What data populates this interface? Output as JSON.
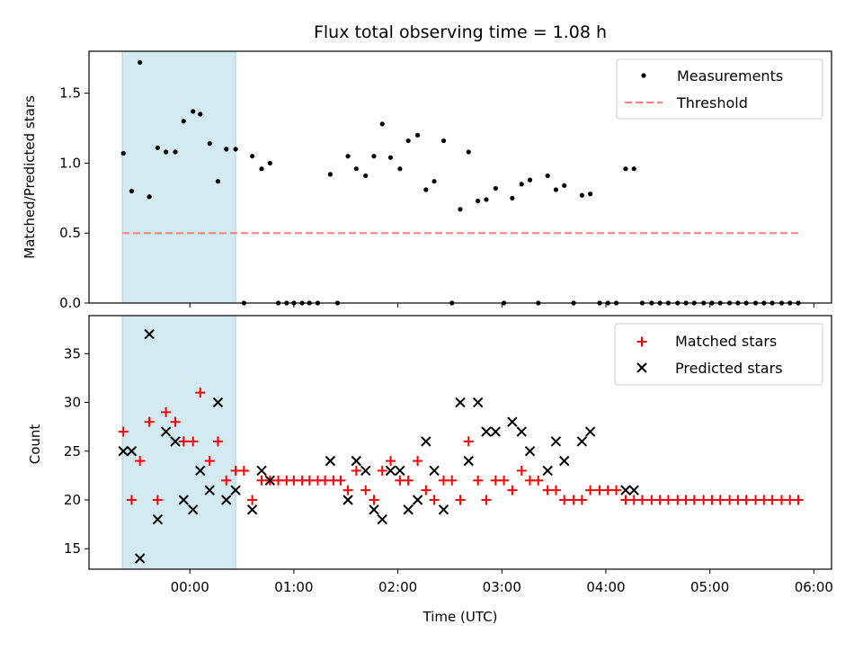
{
  "chart_data": [
    {
      "type": "scatter",
      "title": "Flux total observing time = 1.08 h",
      "ylabel": "Matched/Predicted stars",
      "xlabel": "",
      "x_unit": "hours relative to 00:00 UTC",
      "xlim": [
        -0.97,
        6.17
      ],
      "ylim": [
        0.0,
        1.8
      ],
      "yticks": [
        "0.0",
        "0.5",
        "1.0",
        "1.5"
      ],
      "xticks": [
        "00:00",
        "01:00",
        "02:00",
        "03:00",
        "04:00",
        "05:00",
        "06:00"
      ],
      "shaded_span": [
        -0.65,
        0.44
      ],
      "shaded_color": "#d3eaf0",
      "legend_position": "upper right",
      "series": [
        {
          "name": "Measurements",
          "marker": "dot",
          "color": "#000000",
          "points": [
            [
              -0.64,
              1.07
            ],
            [
              -0.56,
              0.8
            ],
            [
              -0.48,
              1.72
            ],
            [
              -0.39,
              0.76
            ],
            [
              -0.31,
              1.11
            ],
            [
              -0.23,
              1.08
            ],
            [
              -0.14,
              1.08
            ],
            [
              -0.06,
              1.3
            ],
            [
              0.03,
              1.37
            ],
            [
              0.1,
              1.35
            ],
            [
              0.19,
              1.14
            ],
            [
              0.27,
              0.87
            ],
            [
              0.35,
              1.1
            ],
            [
              0.44,
              1.1
            ],
            [
              0.52,
              0.0
            ],
            [
              0.6,
              1.05
            ],
            [
              0.69,
              0.96
            ],
            [
              0.77,
              1.0
            ],
            [
              0.85,
              0.0
            ],
            [
              0.93,
              0.0
            ],
            [
              1.0,
              0.0
            ],
            [
              1.08,
              0.0
            ],
            [
              1.15,
              0.0
            ],
            [
              1.23,
              0.0
            ],
            [
              1.35,
              0.92
            ],
            [
              1.42,
              0.0
            ],
            [
              1.52,
              1.05
            ],
            [
              1.6,
              0.96
            ],
            [
              1.69,
              0.91
            ],
            [
              1.77,
              1.05
            ],
            [
              1.85,
              1.28
            ],
            [
              1.93,
              1.04
            ],
            [
              2.02,
              0.96
            ],
            [
              2.1,
              1.16
            ],
            [
              2.19,
              1.2
            ],
            [
              2.27,
              0.81
            ],
            [
              2.35,
              0.87
            ],
            [
              2.44,
              1.16
            ],
            [
              2.52,
              0.0
            ],
            [
              2.6,
              0.67
            ],
            [
              2.68,
              1.08
            ],
            [
              2.77,
              0.73
            ],
            [
              2.85,
              0.74
            ],
            [
              2.94,
              0.82
            ],
            [
              3.02,
              0.0
            ],
            [
              3.1,
              0.75
            ],
            [
              3.19,
              0.85
            ],
            [
              3.27,
              0.88
            ],
            [
              3.35,
              0.0
            ],
            [
              3.44,
              0.91
            ],
            [
              3.52,
              0.81
            ],
            [
              3.6,
              0.84
            ],
            [
              3.69,
              0.0
            ],
            [
              3.77,
              0.77
            ],
            [
              3.85,
              0.78
            ],
            [
              3.94,
              0.0
            ],
            [
              4.02,
              0.0
            ],
            [
              4.1,
              0.0
            ],
            [
              4.19,
              0.96
            ],
            [
              4.27,
              0.96
            ],
            [
              4.35,
              0.0
            ],
            [
              4.44,
              0.0
            ],
            [
              4.52,
              0.0
            ],
            [
              4.6,
              0.0
            ],
            [
              4.69,
              0.0
            ],
            [
              4.77,
              0.0
            ],
            [
              4.85,
              0.0
            ],
            [
              4.94,
              0.0
            ],
            [
              5.02,
              0.0
            ],
            [
              5.1,
              0.0
            ],
            [
              5.19,
              0.0
            ],
            [
              5.27,
              0.0
            ],
            [
              5.35,
              0.0
            ],
            [
              5.44,
              0.0
            ],
            [
              5.52,
              0.0
            ],
            [
              5.6,
              0.0
            ],
            [
              5.69,
              0.0
            ],
            [
              5.77,
              0.0
            ],
            [
              5.85,
              0.0
            ]
          ]
        },
        {
          "name": "Threshold",
          "type": "line",
          "style": "dashed",
          "color": "#ff7f7f",
          "points": [
            [
              -0.65,
              0.5
            ],
            [
              5.85,
              0.5
            ]
          ]
        }
      ]
    },
    {
      "type": "scatter",
      "title": "",
      "ylabel": "Count",
      "xlabel": "Time (UTC)",
      "x_unit": "hours relative to 00:00 UTC",
      "xlim": [
        -0.97,
        6.17
      ],
      "ylim": [
        12.9,
        38.9
      ],
      "yticks": [
        "15",
        "20",
        "25",
        "30",
        "35"
      ],
      "xticks": [
        "00:00",
        "01:00",
        "02:00",
        "03:00",
        "04:00",
        "05:00",
        "06:00"
      ],
      "shaded_span": [
        -0.65,
        0.44
      ],
      "shaded_color": "#d3eaf0",
      "legend_position": "upper right",
      "series": [
        {
          "name": "Matched stars",
          "marker": "plus",
          "color": "#ff0000",
          "points": [
            [
              -0.64,
              27
            ],
            [
              -0.56,
              20
            ],
            [
              -0.48,
              24
            ],
            [
              -0.39,
              28
            ],
            [
              -0.31,
              20
            ],
            [
              -0.23,
              29
            ],
            [
              -0.14,
              28
            ],
            [
              -0.06,
              26
            ],
            [
              0.03,
              26
            ],
            [
              0.1,
              31
            ],
            [
              0.19,
              24
            ],
            [
              0.27,
              26
            ],
            [
              0.35,
              22
            ],
            [
              0.44,
              23
            ],
            [
              0.52,
              23
            ],
            [
              0.6,
              20
            ],
            [
              0.69,
              22
            ],
            [
              0.77,
              22
            ],
            [
              0.85,
              22
            ],
            [
              0.93,
              22
            ],
            [
              1.0,
              22
            ],
            [
              1.08,
              22
            ],
            [
              1.15,
              22
            ],
            [
              1.23,
              22
            ],
            [
              1.3,
              22
            ],
            [
              1.38,
              22
            ],
            [
              1.45,
              22
            ],
            [
              1.52,
              21
            ],
            [
              1.6,
              23
            ],
            [
              1.69,
              21
            ],
            [
              1.77,
              20
            ],
            [
              1.85,
              23
            ],
            [
              1.93,
              24
            ],
            [
              2.02,
              22
            ],
            [
              2.1,
              22
            ],
            [
              2.19,
              24
            ],
            [
              2.27,
              21
            ],
            [
              2.35,
              20
            ],
            [
              2.44,
              22
            ],
            [
              2.52,
              22
            ],
            [
              2.6,
              20
            ],
            [
              2.68,
              26
            ],
            [
              2.77,
              22
            ],
            [
              2.85,
              20
            ],
            [
              2.94,
              22
            ],
            [
              3.02,
              22
            ],
            [
              3.1,
              21
            ],
            [
              3.19,
              23
            ],
            [
              3.27,
              22
            ],
            [
              3.35,
              22
            ],
            [
              3.44,
              21
            ],
            [
              3.52,
              21
            ],
            [
              3.6,
              20
            ],
            [
              3.69,
              20
            ],
            [
              3.77,
              20
            ],
            [
              3.85,
              21
            ],
            [
              3.94,
              21
            ],
            [
              4.02,
              21
            ],
            [
              4.1,
              21
            ],
            [
              4.19,
              20
            ],
            [
              4.27,
              20
            ],
            [
              4.35,
              20
            ],
            [
              4.44,
              20
            ],
            [
              4.52,
              20
            ],
            [
              4.6,
              20
            ],
            [
              4.69,
              20
            ],
            [
              4.77,
              20
            ],
            [
              4.85,
              20
            ],
            [
              4.94,
              20
            ],
            [
              5.02,
              20
            ],
            [
              5.1,
              20
            ],
            [
              5.19,
              20
            ],
            [
              5.27,
              20
            ],
            [
              5.35,
              20
            ],
            [
              5.44,
              20
            ],
            [
              5.52,
              20
            ],
            [
              5.6,
              20
            ],
            [
              5.69,
              20
            ],
            [
              5.77,
              20
            ],
            [
              5.85,
              20
            ]
          ]
        },
        {
          "name": "Predicted stars",
          "marker": "x",
          "color": "#000000",
          "points": [
            [
              -0.64,
              25
            ],
            [
              -0.56,
              25
            ],
            [
              -0.48,
              14
            ],
            [
              -0.39,
              37
            ],
            [
              -0.31,
              18
            ],
            [
              -0.23,
              27
            ],
            [
              -0.14,
              26
            ],
            [
              -0.06,
              20
            ],
            [
              0.03,
              19
            ],
            [
              0.1,
              23
            ],
            [
              0.19,
              21
            ],
            [
              0.27,
              30
            ],
            [
              0.35,
              20
            ],
            [
              0.44,
              21
            ],
            [
              0.6,
              19
            ],
            [
              0.69,
              23
            ],
            [
              0.77,
              22
            ],
            [
              1.35,
              24
            ],
            [
              1.52,
              20
            ],
            [
              1.6,
              24
            ],
            [
              1.69,
              23
            ],
            [
              1.77,
              19
            ],
            [
              1.85,
              18
            ],
            [
              1.93,
              23
            ],
            [
              2.02,
              23
            ],
            [
              2.1,
              19
            ],
            [
              2.19,
              20
            ],
            [
              2.27,
              26
            ],
            [
              2.35,
              23
            ],
            [
              2.44,
              19
            ],
            [
              2.6,
              30
            ],
            [
              2.68,
              24
            ],
            [
              2.77,
              30
            ],
            [
              2.85,
              27
            ],
            [
              2.94,
              27
            ],
            [
              3.1,
              28
            ],
            [
              3.19,
              27
            ],
            [
              3.27,
              25
            ],
            [
              3.44,
              23
            ],
            [
              3.52,
              26
            ],
            [
              3.6,
              24
            ],
            [
              3.77,
              26
            ],
            [
              3.85,
              27
            ],
            [
              4.19,
              21
            ],
            [
              4.27,
              21
            ]
          ]
        }
      ]
    }
  ]
}
